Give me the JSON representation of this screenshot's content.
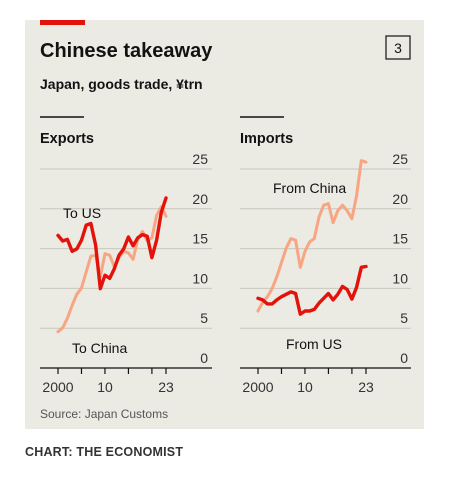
{
  "header": {
    "title": "Chinese takeaway",
    "subtitle": "Japan, goods trade, ¥trn",
    "badge": "3"
  },
  "footer": {
    "source": "Source: Japan Customs",
    "credit": "CHART: THE ECONOMIST"
  },
  "colors": {
    "china": "#f7a582",
    "us": "#e3120b",
    "background": "#ebeae3",
    "accent": "#e3120b"
  },
  "chart_data": [
    {
      "type": "line",
      "panel_title": "Exports",
      "x_tick_labels": [
        "2000",
        "10",
        "23"
      ],
      "x_ticks": [
        2000,
        2005,
        2010,
        2015,
        2020,
        2023
      ],
      "xlim": [
        2000,
        2023
      ],
      "ylim": [
        0,
        25
      ],
      "y_ticks": [
        0,
        5,
        10,
        15,
        20,
        25
      ],
      "y_axis_side": "right",
      "grid": true,
      "series": [
        {
          "name": "To US",
          "color": "#e3120b",
          "x": [
            2000,
            2001,
            2002,
            2003,
            2004,
            2005,
            2006,
            2007,
            2008,
            2009,
            2010,
            2011,
            2012,
            2013,
            2014,
            2015,
            2016,
            2017,
            2018,
            2019,
            2020,
            2021,
            2022,
            2023
          ],
          "values": [
            15.4,
            14.7,
            14.9,
            13.4,
            13.7,
            14.8,
            16.7,
            16.9,
            14.2,
            8.7,
            10.4,
            10.0,
            11.2,
            12.9,
            13.7,
            15.2,
            14.1,
            15.1,
            15.5,
            15.3,
            12.6,
            14.8,
            18.3,
            20.1
          ]
        },
        {
          "name": "To China",
          "color": "#f7a582",
          "x": [
            2000,
            2001,
            2002,
            2003,
            2004,
            2005,
            2006,
            2007,
            2008,
            2009,
            2010,
            2011,
            2012,
            2013,
            2014,
            2015,
            2016,
            2017,
            2018,
            2019,
            2020,
            2021,
            2022,
            2023
          ],
          "values": [
            3.3,
            3.8,
            5.0,
            6.6,
            8.0,
            8.8,
            10.8,
            12.8,
            12.9,
            10.2,
            13.1,
            12.9,
            11.5,
            12.6,
            13.4,
            13.2,
            12.4,
            14.9,
            15.9,
            14.7,
            15.1,
            17.9,
            19.0,
            17.8
          ]
        }
      ]
    },
    {
      "type": "line",
      "panel_title": "Imports",
      "x_tick_labels": [
        "2000",
        "10",
        "23"
      ],
      "x_ticks": [
        2000,
        2005,
        2010,
        2015,
        2020,
        2023
      ],
      "xlim": [
        2000,
        2023
      ],
      "ylim": [
        0,
        25
      ],
      "y_ticks": [
        0,
        5,
        10,
        15,
        20,
        25
      ],
      "y_axis_side": "right",
      "grid": true,
      "series": [
        {
          "name": "From China",
          "color": "#f7a582",
          "x": [
            2000,
            2001,
            2002,
            2003,
            2004,
            2005,
            2006,
            2007,
            2008,
            2009,
            2010,
            2011,
            2012,
            2013,
            2014,
            2015,
            2016,
            2017,
            2018,
            2019,
            2020,
            2021,
            2022,
            2023
          ],
          "values": [
            5.9,
            7.0,
            7.7,
            8.7,
            10.2,
            12.0,
            13.8,
            15.0,
            14.8,
            11.4,
            13.4,
            14.6,
            15.0,
            17.7,
            19.2,
            19.4,
            17.0,
            18.5,
            19.2,
            18.5,
            17.5,
            20.4,
            24.8,
            24.6
          ]
        },
        {
          "name": "From US",
          "color": "#e3120b",
          "x": [
            2000,
            2001,
            2002,
            2003,
            2004,
            2005,
            2006,
            2007,
            2008,
            2009,
            2010,
            2011,
            2012,
            2013,
            2014,
            2015,
            2016,
            2017,
            2018,
            2019,
            2020,
            2021,
            2022,
            2023
          ],
          "values": [
            7.5,
            7.3,
            6.8,
            6.8,
            7.3,
            7.7,
            8.0,
            8.3,
            8.1,
            5.5,
            5.9,
            5.9,
            6.1,
            6.9,
            7.5,
            8.1,
            7.3,
            8.0,
            9.0,
            8.6,
            7.4,
            8.9,
            11.4,
            11.5
          ]
        }
      ]
    }
  ]
}
